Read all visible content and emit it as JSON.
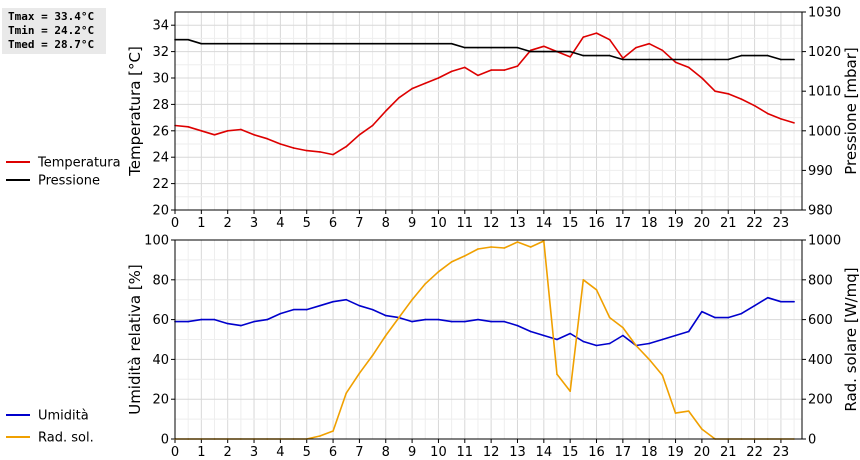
{
  "stats": {
    "tmax": "Tmax = 33.4°C",
    "tmin": "Tmin = 24.2°C",
    "tmed": "Tmed = 28.7°C"
  },
  "chart_data": [
    {
      "type": "line",
      "x_ticks": [
        "0",
        "1",
        "2",
        "3",
        "4",
        "5",
        "6",
        "7",
        "8",
        "9",
        "10",
        "11",
        "12",
        "13",
        "14",
        "15",
        "16",
        "17",
        "18",
        "19",
        "20",
        "21",
        "22",
        "23"
      ],
      "xlim": [
        0,
        23.8
      ],
      "ylabel": "Temperatura [°C]",
      "ylim": [
        20,
        35
      ],
      "y_ticks": [
        "20",
        "22",
        "24",
        "26",
        "28",
        "30",
        "32",
        "34"
      ],
      "ylabel_right": "Pressione [mbar]",
      "ylim_right": [
        980,
        1030
      ],
      "y_ticks_right": [
        "980",
        "990",
        "1000",
        "1010",
        "1020",
        "1030"
      ],
      "grid": true,
      "legend_position": "left",
      "series": [
        {
          "name": "Temperatura",
          "axis": "left",
          "color": "#dd0000",
          "x": [
            0,
            0.5,
            1,
            1.5,
            2,
            2.5,
            3,
            3.5,
            4,
            4.5,
            5,
            5.5,
            6,
            6.5,
            7,
            7.5,
            8,
            8.5,
            9,
            9.5,
            10,
            10.5,
            11,
            11.5,
            12,
            12.5,
            13,
            13.5,
            14,
            14.5,
            15,
            15.5,
            16,
            16.5,
            17,
            17.5,
            18,
            18.5,
            19,
            19.5,
            20,
            20.5,
            21,
            21.5,
            22,
            22.5,
            23,
            23.5
          ],
          "values": [
            26.4,
            26.3,
            26.0,
            25.7,
            26.0,
            26.1,
            25.7,
            25.4,
            25.0,
            24.7,
            24.5,
            24.4,
            24.2,
            24.8,
            25.7,
            26.4,
            27.5,
            28.5,
            29.2,
            29.6,
            30.0,
            30.5,
            30.8,
            30.2,
            30.6,
            30.6,
            30.9,
            32.1,
            32.4,
            32.0,
            31.6,
            33.1,
            33.4,
            32.9,
            31.5,
            32.3,
            32.6,
            32.1,
            31.2,
            30.8,
            30.0,
            29.0,
            28.8,
            28.4,
            27.9,
            27.3,
            26.9,
            26.6
          ]
        },
        {
          "name": "Pressione",
          "axis": "right",
          "color": "#000000",
          "x": [
            0,
            0.5,
            1,
            1.5,
            2,
            2.5,
            3,
            3.5,
            4,
            4.5,
            5,
            5.5,
            6,
            6.5,
            7,
            7.5,
            8,
            8.5,
            9,
            9.5,
            10,
            10.5,
            11,
            11.5,
            12,
            12.5,
            13,
            13.5,
            14,
            14.5,
            15,
            15.5,
            16,
            16.5,
            17,
            17.5,
            18,
            18.5,
            19,
            19.5,
            20,
            20.5,
            21,
            21.5,
            22,
            22.5,
            23,
            23.5
          ],
          "values": [
            1023,
            1023,
            1022,
            1022,
            1022,
            1022,
            1022,
            1022,
            1022,
            1022,
            1022,
            1022,
            1022,
            1022,
            1022,
            1022,
            1022,
            1022,
            1022,
            1022,
            1022,
            1022,
            1021,
            1021,
            1021,
            1021,
            1021,
            1020,
            1020,
            1020,
            1020,
            1019,
            1019,
            1019,
            1018,
            1018,
            1018,
            1018,
            1018,
            1018,
            1018,
            1018,
            1018,
            1019,
            1019,
            1019,
            1018,
            1018
          ]
        }
      ]
    },
    {
      "type": "line",
      "x_ticks": [
        "0",
        "1",
        "2",
        "3",
        "4",
        "5",
        "6",
        "7",
        "8",
        "9",
        "10",
        "11",
        "12",
        "13",
        "14",
        "15",
        "16",
        "17",
        "18",
        "19",
        "20",
        "21",
        "22",
        "23"
      ],
      "xlim": [
        0,
        23.8
      ],
      "ylabel": "Umidità relativa [%]",
      "ylim": [
        0,
        100
      ],
      "y_ticks": [
        "0",
        "20",
        "40",
        "60",
        "80",
        "100"
      ],
      "ylabel_right": "Rad. solare [W/mq]",
      "ylim_right": [
        0,
        1000
      ],
      "y_ticks_right": [
        "0",
        "200",
        "400",
        "600",
        "800",
        "1000"
      ],
      "grid": true,
      "legend_position": "left",
      "series": [
        {
          "name": "Umidità",
          "axis": "left",
          "color": "#0000cc",
          "x": [
            0,
            0.5,
            1,
            1.5,
            2,
            2.5,
            3,
            3.5,
            4,
            4.5,
            5,
            5.5,
            6,
            6.5,
            7,
            7.5,
            8,
            8.5,
            9,
            9.5,
            10,
            10.5,
            11,
            11.5,
            12,
            12.5,
            13,
            13.5,
            14,
            14.5,
            15,
            15.5,
            16,
            16.5,
            17,
            17.5,
            18,
            18.5,
            19,
            19.5,
            20,
            20.5,
            21,
            21.5,
            22,
            22.5,
            23,
            23.5
          ],
          "values": [
            59,
            59,
            60,
            60,
            58,
            57,
            59,
            60,
            63,
            65,
            65,
            67,
            69,
            70,
            67,
            65,
            62,
            61,
            59,
            60,
            60,
            59,
            59,
            60,
            59,
            59,
            57,
            54,
            52,
            50,
            53,
            49,
            47,
            48,
            52,
            47,
            48,
            50,
            52,
            54,
            64,
            61,
            61,
            63,
            67,
            71,
            69,
            69
          ]
        },
        {
          "name": "Rad. sol.",
          "axis": "right",
          "color": "#f0a000",
          "x": [
            0,
            0.5,
            1,
            1.5,
            2,
            2.5,
            3,
            3.5,
            4,
            4.5,
            5,
            5.5,
            6,
            6.5,
            7,
            7.5,
            8,
            8.5,
            9,
            9.5,
            10,
            10.5,
            11,
            11.5,
            12,
            12.5,
            13,
            13.5,
            14,
            14.5,
            15,
            15.5,
            16,
            16.5,
            17,
            17.5,
            18,
            18.5,
            19,
            19.5,
            20,
            20.5,
            21,
            21.5,
            22,
            22.5,
            23,
            23.5
          ],
          "values": [
            0,
            0,
            0,
            0,
            0,
            0,
            0,
            0,
            0,
            0,
            0,
            15,
            40,
            230,
            330,
            420,
            520,
            610,
            700,
            780,
            840,
            890,
            920,
            955,
            965,
            960,
            990,
            965,
            995,
            325,
            240,
            800,
            750,
            610,
            560,
            470,
            400,
            320,
            130,
            140,
            50,
            0,
            0,
            0,
            0,
            0,
            0,
            0
          ]
        }
      ]
    }
  ]
}
